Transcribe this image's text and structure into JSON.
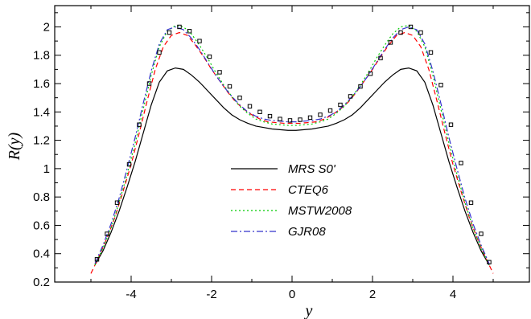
{
  "chart_data": {
    "type": "line",
    "xlabel": "y",
    "ylabel": "R(y)",
    "xlim": [
      -5.9,
      5.9
    ],
    "ylim": [
      0.2,
      2.15
    ],
    "xticks": [
      -4,
      -2,
      0,
      2,
      4
    ],
    "yticks": [
      0.2,
      0.4,
      0.6,
      0.8,
      1,
      1.2,
      1.4,
      1.6,
      1.8,
      2
    ],
    "xtick_labels": [
      "-4",
      "-2",
      "0",
      "2",
      "4"
    ],
    "ytick_labels": [
      "0.2",
      "0.4",
      "0.6",
      "0.8",
      "1",
      "1.2",
      "1.4",
      "1.6",
      "1.8",
      "2"
    ],
    "grid": false,
    "legend_position": "center",
    "series": [
      {
        "name": "MRS S0'",
        "style": "solid",
        "color": "#000000",
        "x": [
          -4.9,
          -4.7,
          -4.5,
          -4.3,
          -4.1,
          -3.9,
          -3.7,
          -3.5,
          -3.3,
          -3.1,
          -2.9,
          -2.7,
          -2.5,
          -2.3,
          -2.1,
          -1.9,
          -1.7,
          -1.5,
          -1.3,
          -1.1,
          -0.9,
          -0.7,
          -0.5,
          -0.3,
          -0.1,
          0,
          0.1,
          0.3,
          0.5,
          0.7,
          0.9,
          1.1,
          1.3,
          1.5,
          1.7,
          1.9,
          2.1,
          2.3,
          2.5,
          2.7,
          2.9,
          3.1,
          3.3,
          3.5,
          3.7,
          3.9,
          4.1,
          4.3,
          4.5,
          4.7,
          4.9
        ],
        "y": [
          0.32,
          0.42,
          0.55,
          0.7,
          0.87,
          1.05,
          1.25,
          1.45,
          1.61,
          1.69,
          1.71,
          1.7,
          1.66,
          1.61,
          1.55,
          1.49,
          1.43,
          1.38,
          1.345,
          1.32,
          1.3,
          1.29,
          1.28,
          1.275,
          1.27,
          1.27,
          1.27,
          1.275,
          1.28,
          1.29,
          1.3,
          1.32,
          1.345,
          1.38,
          1.43,
          1.49,
          1.55,
          1.61,
          1.66,
          1.7,
          1.71,
          1.69,
          1.61,
          1.45,
          1.25,
          1.05,
          0.87,
          0.7,
          0.55,
          0.42,
          0.32
        ]
      },
      {
        "name": "CTEQ6",
        "style": "dashed",
        "color": "#ff0000",
        "x": [
          -5.0,
          -4.8,
          -4.6,
          -4.4,
          -4.2,
          -4.0,
          -3.8,
          -3.6,
          -3.4,
          -3.2,
          -3.0,
          -2.8,
          -2.6,
          -2.4,
          -2.2,
          -2.0,
          -1.8,
          -1.6,
          -1.4,
          -1.2,
          -1.0,
          -0.8,
          -0.6,
          -0.4,
          -0.2,
          0,
          0.2,
          0.4,
          0.6,
          0.8,
          1.0,
          1.2,
          1.4,
          1.6,
          1.8,
          2.0,
          2.2,
          2.4,
          2.6,
          2.8,
          3.0,
          3.2,
          3.4,
          3.6,
          3.8,
          4.0,
          4.2,
          4.4,
          4.6,
          4.8,
          5.0
        ],
        "y": [
          0.26,
          0.38,
          0.51,
          0.66,
          0.84,
          1.03,
          1.25,
          1.48,
          1.7,
          1.86,
          1.94,
          1.96,
          1.94,
          1.87,
          1.79,
          1.7,
          1.62,
          1.54,
          1.47,
          1.42,
          1.38,
          1.35,
          1.33,
          1.325,
          1.32,
          1.32,
          1.32,
          1.325,
          1.33,
          1.35,
          1.38,
          1.42,
          1.47,
          1.54,
          1.62,
          1.7,
          1.79,
          1.87,
          1.94,
          1.96,
          1.94,
          1.86,
          1.7,
          1.48,
          1.25,
          1.03,
          0.84,
          0.66,
          0.51,
          0.38,
          0.26
        ]
      },
      {
        "name": "MSTW2008",
        "style": "dotted",
        "color": "#00cc00",
        "x": [
          -4.9,
          -4.7,
          -4.5,
          -4.3,
          -4.1,
          -3.9,
          -3.7,
          -3.5,
          -3.3,
          -3.1,
          -2.9,
          -2.7,
          -2.5,
          -2.3,
          -2.1,
          -1.9,
          -1.7,
          -1.5,
          -1.3,
          -1.1,
          -0.9,
          -0.7,
          -0.5,
          -0.3,
          -0.1,
          0,
          0.1,
          0.3,
          0.5,
          0.7,
          0.9,
          1.1,
          1.3,
          1.5,
          1.7,
          1.9,
          2.1,
          2.3,
          2.5,
          2.7,
          2.9,
          3.1,
          3.3,
          3.5,
          3.7,
          3.9,
          4.1,
          4.3,
          4.5,
          4.7,
          4.9
        ],
        "y": [
          0.32,
          0.44,
          0.58,
          0.76,
          0.96,
          1.18,
          1.42,
          1.66,
          1.86,
          1.97,
          2.01,
          2.0,
          1.95,
          1.87,
          1.78,
          1.68,
          1.59,
          1.51,
          1.44,
          1.39,
          1.35,
          1.33,
          1.315,
          1.31,
          1.305,
          1.305,
          1.305,
          1.31,
          1.315,
          1.33,
          1.35,
          1.39,
          1.44,
          1.51,
          1.59,
          1.68,
          1.78,
          1.87,
          1.95,
          2.0,
          2.01,
          1.97,
          1.86,
          1.66,
          1.42,
          1.18,
          0.96,
          0.76,
          0.58,
          0.44,
          0.32
        ]
      },
      {
        "name": "GJR08",
        "style": "dashdot",
        "color": "#3333cc",
        "x": [
          -4.9,
          -4.7,
          -4.5,
          -4.3,
          -4.1,
          -3.9,
          -3.7,
          -3.5,
          -3.3,
          -3.1,
          -2.9,
          -2.7,
          -2.5,
          -2.3,
          -2.1,
          -1.9,
          -1.7,
          -1.5,
          -1.3,
          -1.1,
          -0.9,
          -0.7,
          -0.5,
          -0.3,
          -0.1,
          0,
          0.1,
          0.3,
          0.5,
          0.7,
          0.9,
          1.1,
          1.3,
          1.5,
          1.7,
          1.9,
          2.1,
          2.3,
          2.5,
          2.7,
          2.9,
          3.1,
          3.3,
          3.5,
          3.7,
          3.9,
          4.1,
          4.3,
          4.5,
          4.7,
          4.9
        ],
        "y": [
          0.33,
          0.46,
          0.61,
          0.79,
          1.0,
          1.22,
          1.46,
          1.69,
          1.88,
          1.98,
          2.0,
          1.98,
          1.92,
          1.84,
          1.75,
          1.66,
          1.58,
          1.51,
          1.45,
          1.4,
          1.37,
          1.35,
          1.34,
          1.335,
          1.33,
          1.33,
          1.33,
          1.335,
          1.34,
          1.35,
          1.37,
          1.4,
          1.45,
          1.51,
          1.58,
          1.66,
          1.75,
          1.84,
          1.92,
          1.98,
          2.0,
          1.98,
          1.88,
          1.69,
          1.46,
          1.22,
          1.0,
          0.79,
          0.61,
          0.46,
          0.33
        ]
      },
      {
        "name": "",
        "style": "markers",
        "color": "#000000",
        "x": [
          -4.85,
          -4.6,
          -4.35,
          -4.05,
          -3.8,
          -3.55,
          -3.3,
          -3.05,
          -2.8,
          -2.55,
          -2.3,
          -2.05,
          -1.8,
          -1.55,
          -1.3,
          -1.05,
          -0.8,
          -0.55,
          -0.3,
          -0.05,
          0.2,
          0.45,
          0.7,
          0.95,
          1.2,
          1.45,
          1.7,
          1.95,
          2.2,
          2.45,
          2.7,
          2.95,
          3.2,
          3.45,
          3.7,
          3.95,
          4.2,
          4.45,
          4.7,
          4.9
        ],
        "y": [
          0.36,
          0.54,
          0.76,
          1.03,
          1.31,
          1.6,
          1.82,
          1.96,
          2.0,
          1.97,
          1.9,
          1.79,
          1.68,
          1.58,
          1.5,
          1.44,
          1.4,
          1.37,
          1.35,
          1.34,
          1.345,
          1.36,
          1.38,
          1.41,
          1.45,
          1.51,
          1.58,
          1.67,
          1.78,
          1.89,
          1.96,
          2.0,
          1.96,
          1.82,
          1.59,
          1.31,
          1.04,
          0.76,
          0.54,
          0.34
        ]
      }
    ]
  }
}
